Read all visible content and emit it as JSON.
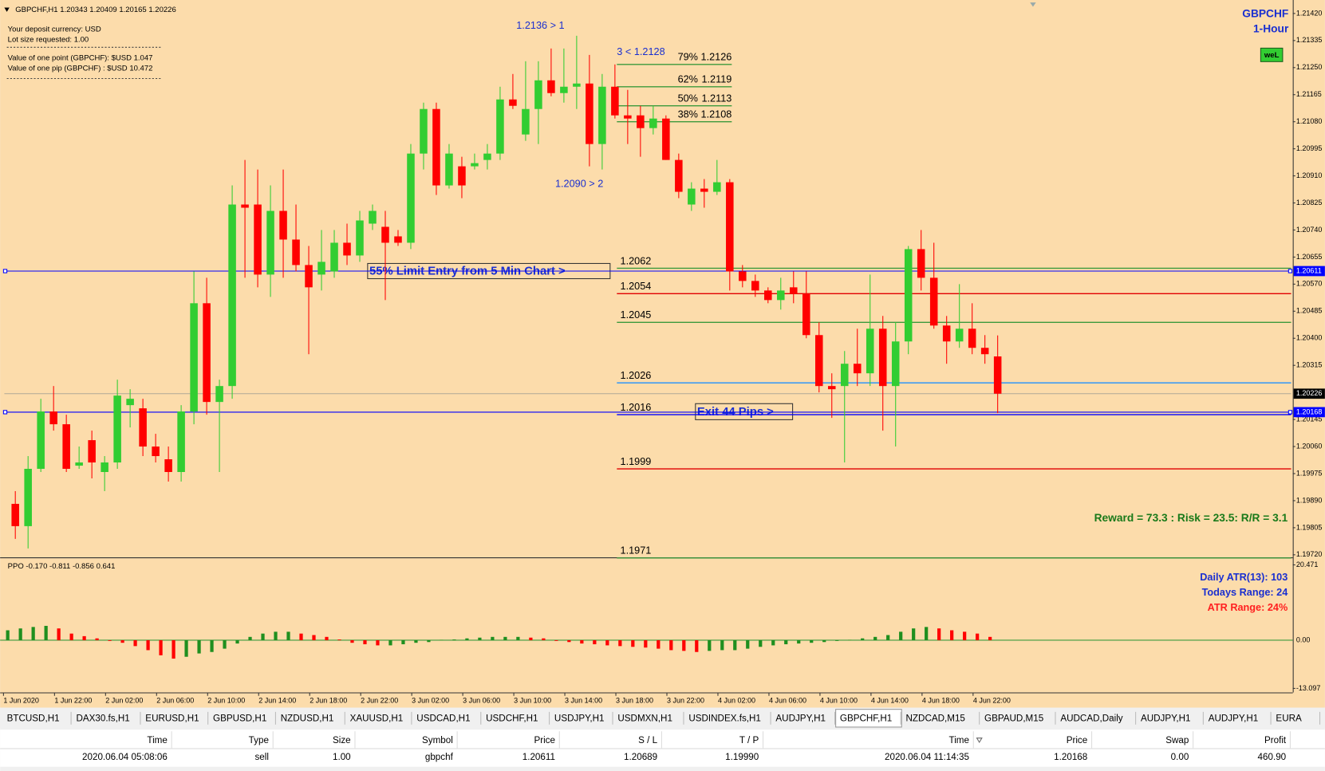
{
  "chart_data": {
    "type": "candlestick",
    "title": "GBPCHF",
    "subtitle": "1-Hour",
    "header": "GBPCHF,H1  1.20343 1.20409 1.20165 1.20226",
    "info": [
      "Your deposit currency: USD",
      "Lot size requested: 1.00",
      "Value of one point (GBPCHF):  $USD 1.047",
      "Value of one pip    (GBPCHF) : $USD 10.472"
    ],
    "badge": "weL",
    "up_color": "#32cd32",
    "down_color": "#ff0000",
    "candles": [
      [
        1.1988,
        1.1992,
        1.1977,
        1.1981
      ],
      [
        1.1981,
        1.2003,
        1.1974,
        1.1999
      ],
      [
        1.1999,
        1.2021,
        1.1998,
        1.2017
      ],
      [
        1.2017,
        1.2025,
        1.2011,
        1.2013
      ],
      [
        1.2013,
        1.2016,
        1.1998,
        1.1999
      ],
      [
        1.2,
        1.2006,
        1.1999,
        1.2001
      ],
      [
        1.2008,
        1.2011,
        1.1996,
        1.2001
      ],
      [
        1.1998,
        1.2003,
        1.1992,
        1.2001
      ],
      [
        1.2001,
        1.2027,
        1.1999,
        1.2022
      ],
      [
        1.2019,
        1.2024,
        1.2012,
        1.2021
      ],
      [
        1.2018,
        1.2021,
        1.2003,
        1.2006
      ],
      [
        1.2006,
        1.201,
        1.2001,
        1.2003
      ],
      [
        1.2002,
        1.2006,
        1.1995,
        1.1998
      ],
      [
        1.1998,
        1.2019,
        1.1995,
        1.2017
      ],
      [
        1.2017,
        1.2061,
        1.2013,
        1.2051
      ],
      [
        1.2051,
        1.2059,
        1.2016,
        1.202
      ],
      [
        1.202,
        1.2027,
        1.1998,
        1.2025
      ],
      [
        1.2025,
        1.2088,
        1.2021,
        1.2082
      ],
      [
        1.2082,
        1.2096,
        1.2059,
        1.2081
      ],
      [
        1.2082,
        1.2093,
        1.2056,
        1.206
      ],
      [
        1.206,
        1.2088,
        1.2053,
        1.208
      ],
      [
        1.208,
        1.2093,
        1.2059,
        1.2071
      ],
      [
        1.2071,
        1.2082,
        1.2061,
        1.2063
      ],
      [
        1.2063,
        1.2069,
        1.2035,
        1.2056
      ],
      [
        1.206,
        1.2074,
        1.2055,
        1.2064
      ],
      [
        1.2061,
        1.2074,
        1.2059,
        1.207
      ],
      [
        1.207,
        1.2076,
        1.2063,
        1.2066
      ],
      [
        1.2066,
        1.208,
        1.2064,
        1.2077
      ],
      [
        1.2076,
        1.2082,
        1.2074,
        1.208
      ],
      [
        1.2075,
        1.208,
        1.2052,
        1.207
      ],
      [
        1.2072,
        1.2074,
        1.2069,
        1.207
      ],
      [
        1.207,
        1.2101,
        1.2068,
        1.2098
      ],
      [
        1.2098,
        1.2114,
        1.2093,
        1.2112
      ],
      [
        1.2112,
        1.2114,
        1.2085,
        1.2088
      ],
      [
        1.2088,
        1.2101,
        1.2087,
        1.2098
      ],
      [
        1.2094,
        1.2097,
        1.2084,
        1.2088
      ],
      [
        1.2094,
        1.2098,
        1.2093,
        1.2095
      ],
      [
        1.2096,
        1.2101,
        1.2093,
        1.2098
      ],
      [
        1.2098,
        1.2119,
        1.2096,
        1.2115
      ],
      [
        1.2115,
        1.2123,
        1.2112,
        1.2113
      ],
      [
        1.2104,
        1.2127,
        1.2102,
        1.2112
      ],
      [
        1.2112,
        1.2127,
        1.2101,
        1.2121
      ],
      [
        1.2121,
        1.2131,
        1.2116,
        1.2117
      ],
      [
        1.2117,
        1.2131,
        1.2114,
        1.2119
      ],
      [
        1.2119,
        1.2135,
        1.2112,
        1.212
      ],
      [
        1.212,
        1.2129,
        1.2094,
        1.2101
      ],
      [
        1.2101,
        1.2123,
        1.2093,
        1.2119
      ],
      [
        1.2119,
        1.2126,
        1.2109,
        1.211
      ],
      [
        1.211,
        1.2118,
        1.2101,
        1.2109
      ],
      [
        1.211,
        1.2113,
        1.2097,
        1.2106
      ],
      [
        1.2106,
        1.2113,
        1.2104,
        1.2109
      ],
      [
        1.2109,
        1.211,
        1.2096,
        1.2096
      ],
      [
        1.2096,
        1.2098,
        1.2084,
        1.2086
      ],
      [
        1.2082,
        1.2089,
        1.208,
        1.2087
      ],
      [
        1.2087,
        1.209,
        1.2081,
        1.2086
      ],
      [
        1.2086,
        1.2096,
        1.2085,
        1.2089
      ],
      [
        1.2089,
        1.209,
        1.2055,
        1.2061
      ],
      [
        1.2061,
        1.2063,
        1.2056,
        1.2058
      ],
      [
        1.2058,
        1.206,
        1.2053,
        1.2055
      ],
      [
        1.2055,
        1.2056,
        1.2051,
        1.2052
      ],
      [
        1.2052,
        1.2059,
        1.2049,
        1.2055
      ],
      [
        1.2056,
        1.2061,
        1.2051,
        1.2054
      ],
      [
        1.2054,
        1.2061,
        1.204,
        1.2041
      ],
      [
        1.2041,
        1.2045,
        1.2023,
        1.2025
      ],
      [
        1.2025,
        1.2029,
        1.2015,
        1.2024
      ],
      [
        1.2025,
        1.2036,
        1.2001,
        1.2032
      ],
      [
        1.2032,
        1.2043,
        1.2025,
        1.2029
      ],
      [
        1.2029,
        1.206,
        1.2025,
        1.2043
      ],
      [
        1.2043,
        1.2047,
        1.2011,
        1.2025
      ],
      [
        1.2025,
        1.2045,
        1.2006,
        1.2039
      ],
      [
        1.2039,
        1.2069,
        1.2035,
        1.2068
      ],
      [
        1.2068,
        1.2074,
        1.2055,
        1.2059
      ],
      [
        1.2059,
        1.207,
        1.2043,
        1.2044
      ],
      [
        1.2044,
        1.2047,
        1.2032,
        1.2039
      ],
      [
        1.2039,
        1.2057,
        1.2037,
        1.2043
      ],
      [
        1.2043,
        1.2051,
        1.2035,
        1.2037
      ],
      [
        1.2037,
        1.2041,
        1.2032,
        1.2035
      ],
      [
        1.20343,
        1.20409,
        1.20165,
        1.20226
      ]
    ],
    "ylim": [
      1.19712,
      1.21457
    ],
    "yticks": [
      {
        "value": 1.2142,
        "label": "1.21420"
      },
      1.21335,
      {
        "value": 1.2125,
        "label": "1.21250"
      },
      1.21165,
      {
        "value": 1.2108,
        "label": "1.21080"
      },
      1.20995,
      {
        "value": 1.2091,
        "label": "1.20910"
      },
      1.20825,
      {
        "value": 1.2074,
        "label": "1.20740"
      },
      1.20655,
      {
        "value": 1.2057,
        "label": "1.20570"
      },
      1.20485,
      {
        "value": 1.204,
        "label": "1.20400"
      },
      1.20315,
      1.20145,
      {
        "value": 1.2006,
        "label": "1.20060"
      },
      1.19975,
      {
        "value": 1.1989,
        "label": "1.19890"
      },
      1.19805,
      {
        "value": 1.1972,
        "label": "1.19720"
      }
    ],
    "x_labels": [
      "1 Jun 2020",
      "1 Jun 22:00",
      "2 Jun 02:00",
      "2 Jun 06:00",
      "2 Jun 10:00",
      "2 Jun 14:00",
      "2 Jun 18:00",
      "2 Jun 22:00",
      "3 Jun 02:00",
      "3 Jun 06:00",
      "3 Jun 10:00",
      "3 Jun 14:00",
      "3 Jun 18:00",
      "3 Jun 22:00",
      "4 Jun 02:00",
      "4 Jun 06:00",
      "4 Jun 10:00",
      "4 Jun 14:00",
      "4 Jun 18:00",
      "4 Jun 22:00"
    ],
    "price_lines": [
      {
        "value": 1.20611,
        "color": "#0000ff"
      },
      {
        "value": 1.20168,
        "color": "#0000ff"
      },
      {
        "value": 1.20226,
        "color": "#000000"
      }
    ],
    "levels": [
      {
        "value": 1.2062,
        "color": "#3c9a3c"
      },
      {
        "value": 1.2054,
        "color": "#e00000"
      },
      {
        "value": 1.2045,
        "color": "#3c9a3c"
      },
      {
        "value": 1.2026,
        "color": "#1e90ff"
      },
      {
        "value": 1.2016,
        "color": "#0000ff"
      },
      {
        "value": 1.1999,
        "color": "#e00000"
      },
      {
        "value": 1.1971,
        "color": "#3c9a3c"
      }
    ],
    "fib": [
      {
        "label": "79%",
        "value": 1.2126
      },
      {
        "label": "62%",
        "value": 1.2119
      },
      {
        "label": "50%",
        "value": 1.2113
      },
      {
        "label": "38%",
        "value": 1.2108
      }
    ],
    "fib_color": "#3c9a3c",
    "annotations": [
      "1.2136 > 1",
      "3 < 1.2128",
      "1.2090 > 2"
    ],
    "entry_note": "55% Limit Entry from 5 Min Chart >",
    "exit_note": "Exit 44 Pips >",
    "reward_note": "Reward = 73.3 : Risk = 23.5: R/R = 3.1",
    "indicator": {
      "type": "bar",
      "title": "PPO -0.170 -0.811 -0.856 0.641",
      "up_color": "#1f8f1f",
      "down_color": "#ff0000",
      "values": [
        2.7,
        3.2,
        3.6,
        3.9,
        3.2,
        1.8,
        1.1,
        0.5,
        -0.2,
        -0.7,
        -1.6,
        -2.7,
        -4.1,
        -5.0,
        -4.5,
        -3.6,
        -3.2,
        -2.3,
        -0.9,
        0.9,
        1.8,
        2.3,
        2.3,
        1.8,
        1.4,
        0.9,
        0.2,
        -0.7,
        -1.1,
        -1.4,
        -1.4,
        -1.1,
        -0.7,
        -0.5,
        0.1,
        0.2,
        0.5,
        0.7,
        0.9,
        0.9,
        0.9,
        0.7,
        0.5,
        -0.2,
        -0.5,
        -0.9,
        -1.1,
        -1.4,
        -1.6,
        -1.8,
        -2.0,
        -2.3,
        -2.7,
        -2.9,
        -3.2,
        -2.9,
        -2.7,
        -2.7,
        -2.3,
        -1.8,
        -1.4,
        -1.1,
        -0.9,
        -0.7,
        -0.5,
        -0.2,
        0.1,
        0.5,
        0.9,
        1.4,
        2.3,
        3.2,
        3.6,
        3.2,
        2.7,
        2.3,
        1.8,
        0.9
      ],
      "ylim": [
        -14.2,
        21.6
      ],
      "yticks": [
        20.471,
        {
          "value": 0,
          "label": "0.00"
        },
        -13.097
      ]
    },
    "stats": [
      {
        "text": "Daily ATR(13): 103",
        "color": "#1a2fd0"
      },
      {
        "text": "Todays Range: 24",
        "color": "#1a2fd0"
      },
      {
        "text": "ATR Range: 24%",
        "color": "#ff2020"
      }
    ]
  },
  "tabs": [
    "BTCUSD,H1",
    "DAX30.fs,H1",
    "EURUSD,H1",
    "GBPUSD,H1",
    "NZDUSD,H1",
    "XAUUSD,H1",
    "USDCAD,H1",
    "USDCHF,H1",
    "USDJPY,H1",
    "USDMXN,H1",
    "USDINDEX.fs,H1",
    "AUDJPY,H1",
    "GBPCHF,H1",
    "NZDCAD,M15",
    "GBPAUD,M15",
    "AUDCAD,Daily",
    "AUDJPY,H1",
    "AUDJPY,H1",
    "EURA"
  ],
  "active_tab": 12,
  "trades": {
    "columns": [
      "Time",
      "Type",
      "Size",
      "Symbol",
      "Price",
      "S / L",
      "T / P",
      "Time",
      "Price",
      "Swap",
      "Profit"
    ],
    "rows": [
      [
        "2020.06.04 05:08:06",
        "sell",
        "1.00",
        "gbpchf",
        "1.20611",
        "1.20689",
        "1.19990",
        "2020.06.04 11:14:35",
        "1.20168",
        "0.00",
        "460.90"
      ]
    ]
  }
}
